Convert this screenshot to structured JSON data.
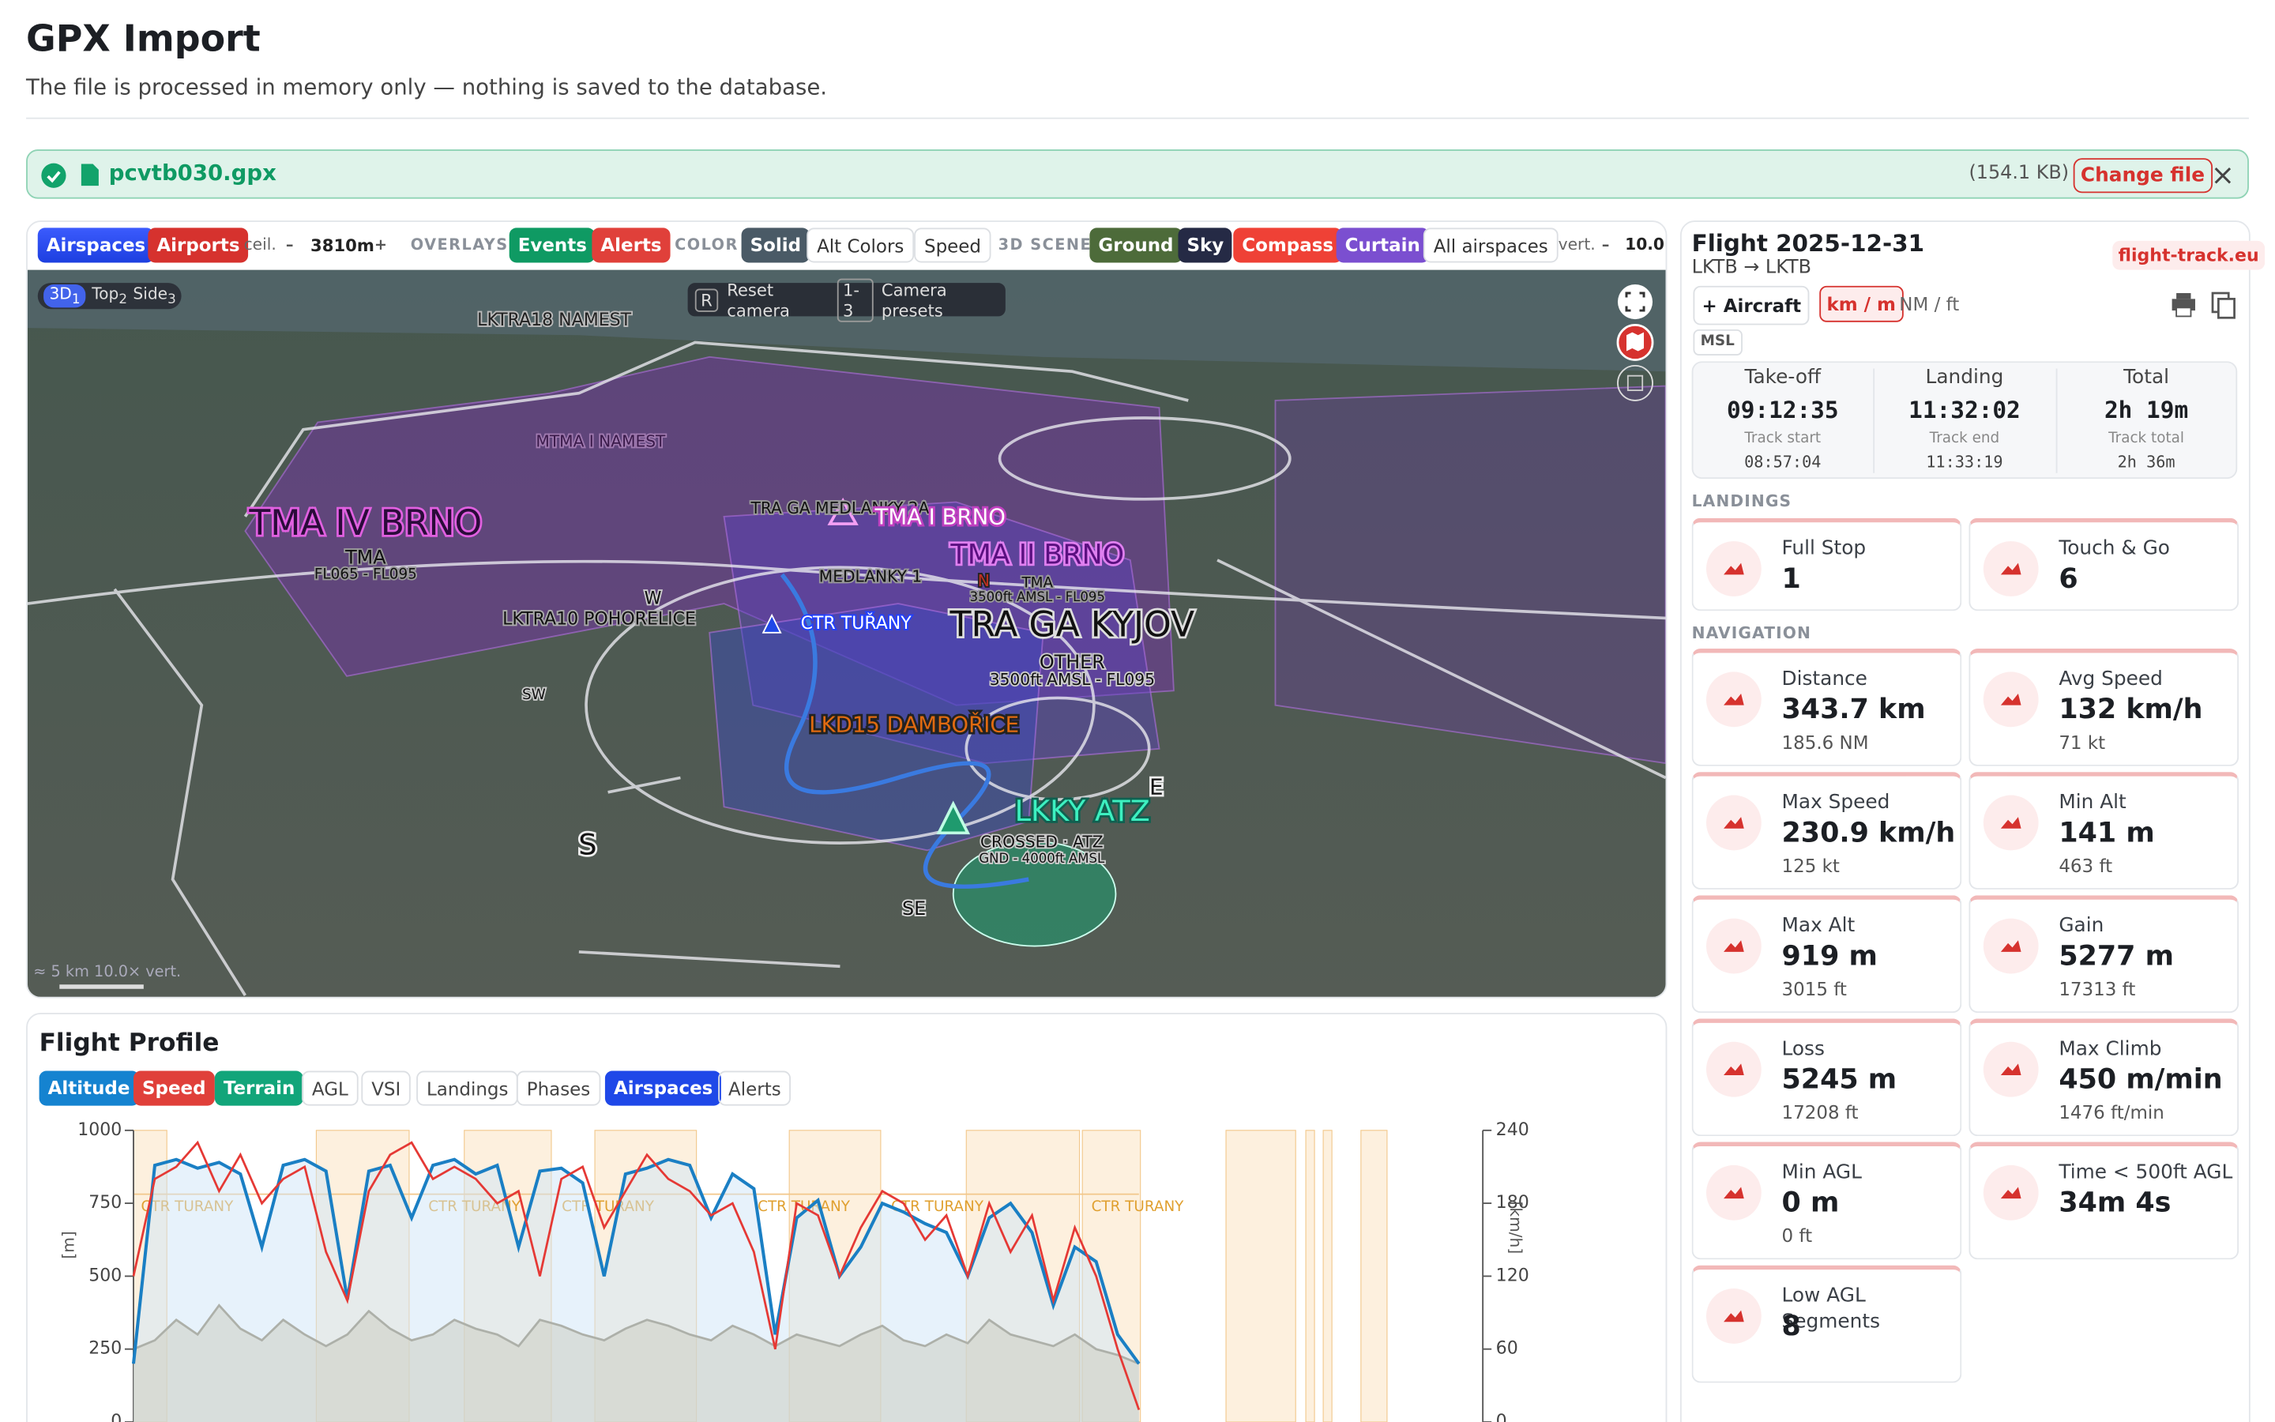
{
  "header": {
    "title": "GPX Import",
    "subtitle": "The file is processed in memory only — nothing is saved to the database."
  },
  "file": {
    "name": "pcvtb030.gpx",
    "size": "(154.1 KB)",
    "change": "Change file"
  },
  "toolbar": [
    "Airspaces",
    "Airports",
    "ceil.",
    "–",
    "3810m",
    "+",
    "OVERLAYS",
    "Events",
    "Alerts",
    "COLOR",
    "Solid",
    "Alt Colors",
    "Speed",
    "3D SCENE",
    "Ground",
    "Sky",
    "Compass",
    "Curtain",
    "All airspaces",
    "vert.",
    "–",
    "10.0"
  ],
  "map": {
    "views": [
      "3D",
      "1",
      "Top",
      "2",
      "Side",
      "3"
    ],
    "hints": [
      "R",
      "Reset camera",
      "1-3",
      "Camera presets"
    ],
    "labels": [
      "LKTRA18 NAMEST",
      "MTMA I NAMEST",
      "TMA IV BRNO",
      "TMA",
      "FL065 - FL095",
      "TRA GA MEDLANKY 2A",
      "TMA I BRNO",
      "TMA II BRNO",
      "TMA",
      "3500ft AMSL - FL095",
      "MEDLANKY 1",
      "N",
      "W",
      "LKTRA10 POHORELICE",
      "CTR TUŘANY",
      "TRA GA KYJOV",
      "OTHER",
      "3500ft AMSL - FL095",
      "SW",
      "LKD15 DAMBOŘICE",
      "S",
      "E",
      "LKKY ATZ",
      "CROSSED · ATZ",
      "GND - 4000ft AMSL",
      "SE"
    ],
    "scale": [
      "≈ 5 km",
      "10.0× vert."
    ]
  },
  "flight": {
    "title": "Flight 2025-12-31",
    "route": "LKTB → LKTB",
    "source": "flight-track.eu",
    "buttons": [
      "+ Aircraft",
      "km / m",
      "NM / ft"
    ],
    "ref": "MSL",
    "times": [
      {
        "label": "Take-off",
        "value": "09:12:35",
        "sublabel": "Track start",
        "subvalue": "08:57:04"
      },
      {
        "label": "Landing",
        "value": "11:32:02",
        "sublabel": "Track end",
        "subvalue": "11:33:19"
      },
      {
        "label": "Total",
        "value": "2h 19m",
        "sublabel": "Track total",
        "subvalue": "2h 36m"
      }
    ],
    "landings": {
      "title": "LANDINGS",
      "cards": [
        {
          "label": "Full Stop",
          "value": "1"
        },
        {
          "label": "Touch & Go",
          "value": "6"
        }
      ]
    },
    "navigation": {
      "title": "NAVIGATION",
      "cards": [
        {
          "label": "Distance",
          "value": "343.7 km",
          "sub": "185.6 NM"
        },
        {
          "label": "Avg Speed",
          "value": "132 km/h",
          "sub": "71 kt"
        },
        {
          "label": "Max Speed",
          "value": "230.9 km/h",
          "sub": "125 kt"
        },
        {
          "label": "Min Alt",
          "value": "141 m",
          "sub": "463 ft"
        },
        {
          "label": "Max Alt",
          "value": "919 m",
          "sub": "3015 ft"
        },
        {
          "label": "Gain",
          "value": "5277 m",
          "sub": "17313 ft"
        },
        {
          "label": "Loss",
          "value": "5245 m",
          "sub": "17208 ft"
        },
        {
          "label": "Max Climb",
          "value": "450 m/min",
          "sub": "1476 ft/min"
        },
        {
          "label": "Min AGL",
          "value": "0 m",
          "sub": "0 ft"
        },
        {
          "label": "Time < 500ft AGL",
          "value": "34m 4s"
        },
        {
          "label": "Low AGL Segments",
          "value": "8"
        }
      ]
    }
  },
  "profile": {
    "title": "Flight Profile",
    "toggles": [
      "Altitude",
      "Speed",
      "Terrain",
      "AGL",
      "VSI",
      "Landings",
      "Phases",
      "Airspaces",
      "Alerts"
    ]
  },
  "chart_data": {
    "type": "line",
    "ylabel": "[m]",
    "y2label": "[km/h]",
    "ylim": [
      0,
      1000
    ],
    "yticks": [
      0,
      250,
      500,
      750,
      1000
    ],
    "y2lim": [
      0,
      240
    ],
    "y2ticks": [
      0,
      60,
      120,
      180,
      240
    ],
    "annotations": [
      "CTR TURANY",
      "CTR TURANY",
      "CTR TURANY",
      "CTR TURANY",
      "CTR TURANY",
      "CTR TURANY"
    ],
    "series": [
      {
        "name": "Altitude",
        "color": "#1a7fc4",
        "values": [
          200,
          880,
          900,
          870,
          890,
          850,
          600,
          880,
          900,
          860,
          420,
          860,
          880,
          700,
          880,
          900,
          850,
          880,
          600,
          860,
          870,
          820,
          500,
          850,
          870,
          900,
          880,
          700,
          850,
          800,
          300,
          700,
          760,
          500,
          600,
          750,
          720,
          680,
          650,
          500,
          700,
          750,
          650,
          400,
          600,
          550,
          300,
          200
        ]
      },
      {
        "name": "Speed",
        "color": "#e53935",
        "axis": "y2",
        "values": [
          120,
          200,
          210,
          230,
          190,
          220,
          180,
          200,
          210,
          140,
          100,
          190,
          220,
          230,
          200,
          210,
          200,
          180,
          190,
          120,
          200,
          210,
          160,
          190,
          220,
          200,
          190,
          170,
          180,
          140,
          60,
          180,
          170,
          120,
          160,
          190,
          180,
          150,
          170,
          120,
          180,
          140,
          170,
          100,
          160,
          120,
          60,
          10
        ]
      },
      {
        "name": "Terrain",
        "color": "#8a7a5a",
        "values": [
          250,
          280,
          350,
          300,
          400,
          320,
          280,
          350,
          300,
          260,
          300,
          380,
          320,
          280,
          300,
          350,
          320,
          300,
          260,
          350,
          330,
          300,
          280,
          320,
          350,
          330,
          300,
          280,
          330,
          300,
          260,
          300,
          280,
          260,
          300,
          330,
          280,
          260,
          300,
          270,
          350,
          300,
          280,
          260,
          300,
          250,
          230,
          200
        ]
      }
    ]
  }
}
